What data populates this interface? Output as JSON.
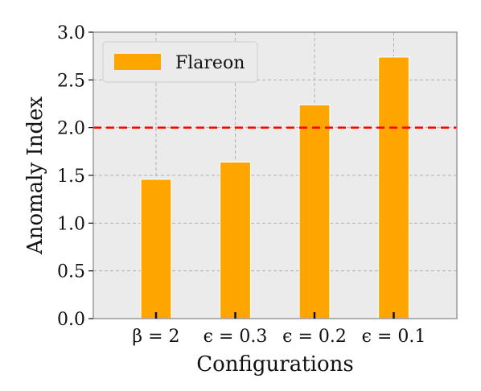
{
  "chart_data": {
    "type": "bar",
    "categories": [
      "β = 2",
      "ϵ = 0.3",
      "ϵ = 0.2",
      "ϵ = 0.1"
    ],
    "series": [
      {
        "name": "Flareon",
        "values": [
          1.46,
          1.64,
          2.24,
          2.74
        ]
      }
    ],
    "xlabel": "Configurations",
    "ylabel": "Anomaly Index",
    "ylim": [
      0,
      3.0
    ],
    "yticks": [
      "0.0",
      "0.5",
      "1.0",
      "1.5",
      "2.0",
      "2.5",
      "3.0"
    ],
    "threshold": 2.0,
    "grid": true,
    "legend": "top-left",
    "colors": {
      "bar": "#FFA500",
      "threshold": "#FF0000",
      "background": "#EBEBEB",
      "grid": "#B0B0B0"
    }
  }
}
